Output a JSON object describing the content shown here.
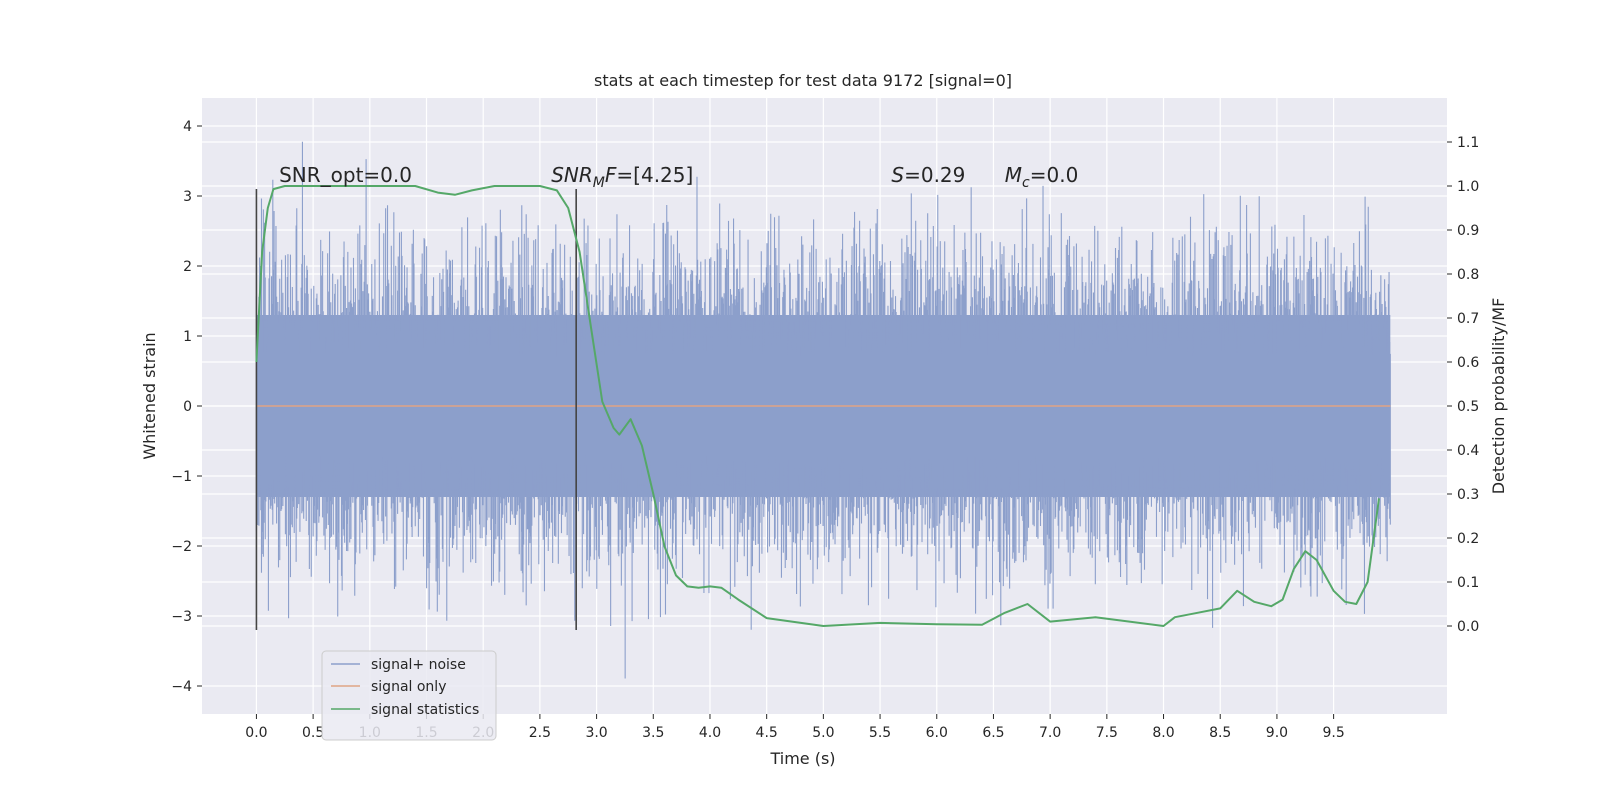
{
  "chart_data": {
    "type": "line",
    "title": "stats at each timestep for test data 9172 [signal=0]",
    "xlabel": "Time (s)",
    "ylabel_left": "Whitened strain",
    "ylabel_right": "Detection probability/MF",
    "xlim": [
      -0.48,
      10.5
    ],
    "ylim_left": [
      -4.4,
      4.4
    ],
    "ylim_right": [
      -0.2,
      1.2
    ],
    "x_ticks": [
      0.0,
      0.5,
      1.0,
      1.5,
      2.0,
      2.5,
      3.0,
      3.5,
      4.0,
      4.5,
      5.0,
      5.5,
      6.0,
      6.5,
      7.0,
      7.5,
      8.0,
      8.5,
      9.0,
      9.5
    ],
    "x_tick_labels": [
      "0.0",
      "0.5",
      "1.0",
      "1.5",
      "2.0",
      "2.5",
      "3.0",
      "3.5",
      "4.0",
      "4.5",
      "5.0",
      "5.5",
      "6.0",
      "6.5",
      "7.0",
      "7.5",
      "8.0",
      "8.5",
      "9.0",
      "9.5"
    ],
    "y_left_ticks": [
      -4,
      -3,
      -2,
      -1,
      0,
      1,
      2,
      3,
      4
    ],
    "y_left_tick_labels": [
      "−4",
      "−3",
      "−2",
      "−1",
      "0",
      "1",
      "2",
      "3",
      "4"
    ],
    "y_right_ticks": [
      0.0,
      0.1,
      0.2,
      0.3,
      0.4,
      0.5,
      0.6,
      0.7,
      0.8,
      0.9,
      1.0,
      1.1
    ],
    "y_right_tick_labels": [
      "0.0",
      "0.1",
      "0.2",
      "0.3",
      "0.4",
      "0.5",
      "0.6",
      "0.7",
      "0.8",
      "0.9",
      "1.0",
      "1.1"
    ],
    "grid": true,
    "legend_placement": "lower-left",
    "series": [
      {
        "name": "signal+ noise",
        "axis": "left",
        "color": "#8c9fcb",
        "kind": "noise-band",
        "x_range": [
          0.0,
          10.0
        ],
        "core_range": [
          -1.3,
          1.3
        ],
        "peak_max": 4.0,
        "peak_min": -4.1
      },
      {
        "name": "signal only",
        "axis": "left",
        "color": "#e0a484",
        "x": [
          0.0,
          10.0
        ],
        "y": [
          0.0,
          0.0
        ]
      },
      {
        "name": "signal statistics",
        "axis": "right",
        "color": "#55a868",
        "x": [
          0.0,
          0.05,
          0.1,
          0.15,
          0.25,
          0.5,
          1.0,
          1.4,
          1.6,
          1.75,
          1.9,
          2.1,
          2.5,
          2.65,
          2.75,
          2.85,
          2.95,
          3.05,
          3.15,
          3.2,
          3.3,
          3.4,
          3.5,
          3.6,
          3.7,
          3.8,
          3.9,
          4.0,
          4.1,
          4.25,
          4.5,
          5.0,
          5.5,
          6.0,
          6.4,
          6.6,
          6.8,
          7.0,
          7.4,
          8.0,
          8.1,
          8.3,
          8.5,
          8.65,
          8.8,
          8.95,
          9.05,
          9.15,
          9.25,
          9.35,
          9.5,
          9.6,
          9.7,
          9.8,
          9.9
        ],
        "y": [
          0.6,
          0.85,
          0.95,
          0.993,
          1.0,
          1.0,
          1.0,
          1.0,
          0.985,
          0.98,
          0.99,
          1.0,
          1.0,
          0.99,
          0.95,
          0.85,
          0.68,
          0.51,
          0.45,
          0.435,
          0.47,
          0.41,
          0.3,
          0.18,
          0.115,
          0.09,
          0.087,
          0.09,
          0.087,
          0.06,
          0.018,
          0.0,
          0.007,
          0.004,
          0.003,
          0.03,
          0.05,
          0.01,
          0.02,
          0.0,
          0.02,
          0.03,
          0.04,
          0.08,
          0.055,
          0.045,
          0.06,
          0.13,
          0.17,
          0.15,
          0.08,
          0.055,
          0.05,
          0.1,
          0.29
        ]
      }
    ],
    "markers": [
      {
        "x": 0.0,
        "y_top": 3.1,
        "y_bottom": -3.2,
        "color": "#444444"
      },
      {
        "x": 2.82,
        "y_top": 3.1,
        "y_bottom": -3.2,
        "color": "#444444"
      }
    ],
    "annotations": [
      {
        "id": "snr-opt",
        "x": 0.2,
        "y": 3.1,
        "text": "SNR_opt=0.0",
        "parts": [
          [
            "SNR_opt=0.0",
            "normal"
          ]
        ]
      },
      {
        "id": "snr-mf",
        "x": 2.6,
        "y": 3.1,
        "text": "SNR_MF=[4.25]",
        "parts": [
          [
            "SNR",
            "italic"
          ],
          [
            "M",
            "sub-italic"
          ],
          [
            "F",
            "italic"
          ],
          [
            "=[4.25]",
            "normal"
          ]
        ]
      },
      {
        "id": "s-stat",
        "x": 5.6,
        "y": 3.1,
        "text": "S=0.29",
        "parts": [
          [
            "S",
            "italic"
          ],
          [
            "=0.29",
            "normal"
          ]
        ]
      },
      {
        "id": "mc",
        "x": 6.6,
        "y": 3.1,
        "text": "M_c=0.0",
        "parts": [
          [
            "M",
            "italic"
          ],
          [
            "c",
            "sub-italic"
          ],
          [
            "=0.0",
            "normal"
          ]
        ]
      }
    ]
  }
}
